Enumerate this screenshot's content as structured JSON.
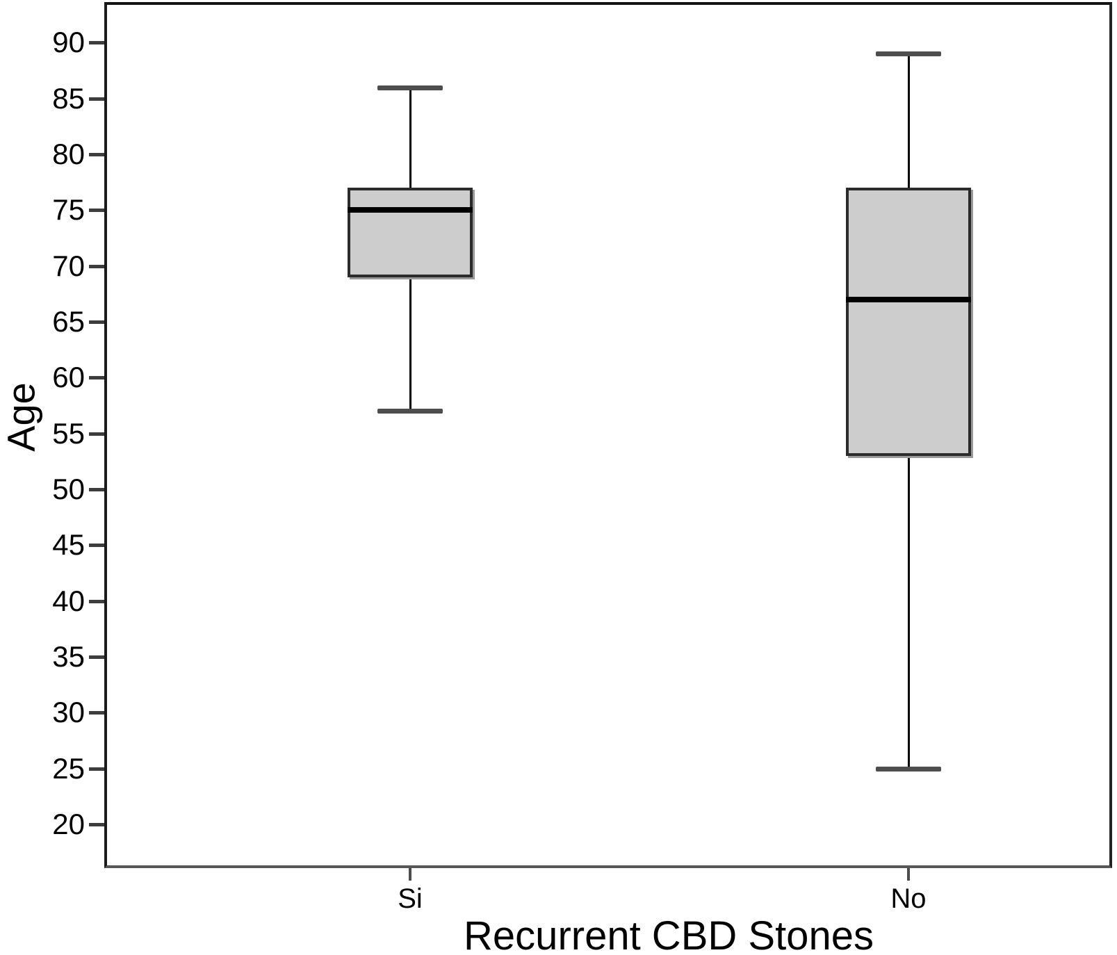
{
  "chart_data": {
    "type": "boxplot",
    "title": "",
    "xlabel": "Recurrent CBD Stones",
    "ylabel": "Age",
    "categories": [
      "Si",
      "No"
    ],
    "yticks": [
      90,
      85,
      80,
      75,
      70,
      65,
      60,
      55,
      50,
      45,
      40,
      35,
      30,
      25,
      20
    ],
    "ylim": [
      16.2,
      93.5
    ],
    "grid": false,
    "legend": "none",
    "series": [
      {
        "category": "Si",
        "whisker_low": 57,
        "q1": 69,
        "median": 75,
        "q3": 77,
        "whisker_high": 86
      },
      {
        "category": "No",
        "whisker_low": 25,
        "q1": 53,
        "median": 67,
        "q3": 77,
        "whisker_high": 89
      }
    ]
  },
  "appearance": {
    "box_fill": "#cdcdcd",
    "box_border": "#2b2b2b",
    "median_color": "#000000",
    "whisker_color": "#000000",
    "cap_color": "#4d4d4d",
    "frame_color": "#141414",
    "background": "#ffffff",
    "text_color": "#000000"
  }
}
